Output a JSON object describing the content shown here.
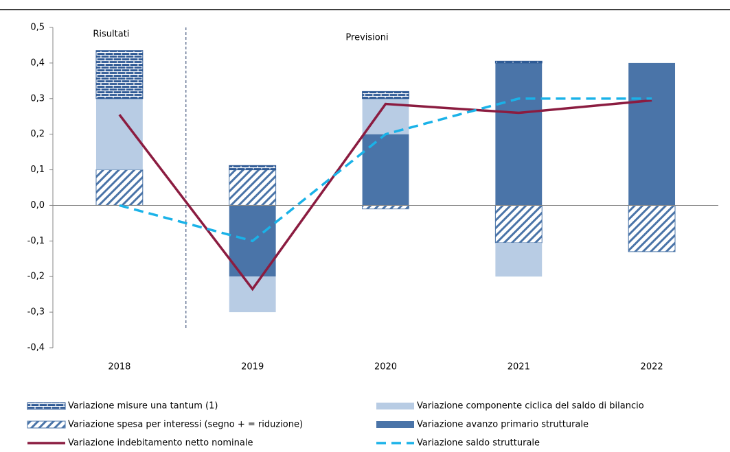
{
  "chart_data": {
    "type": "bar",
    "categories": [
      "2018",
      "2019",
      "2020",
      "2021",
      "2022"
    ],
    "annotations": [
      "Risultati",
      "Previsioni"
    ],
    "ylim": [
      -0.4,
      0.5
    ],
    "yticks": [
      {
        "value": 0.5,
        "label": "0,5"
      },
      {
        "value": 0.4,
        "label": "0,4"
      },
      {
        "value": 0.3,
        "label": "0,3"
      },
      {
        "value": 0.2,
        "label": "0,2"
      },
      {
        "value": 0.1,
        "label": "0,1"
      },
      {
        "value": 0.0,
        "label": "0,0"
      },
      {
        "value": -0.1,
        "label": "-0,1"
      },
      {
        "value": -0.2,
        "label": "-0,2"
      },
      {
        "value": -0.3,
        "label": "-0,3"
      },
      {
        "value": -0.4,
        "label": "-0,4"
      }
    ],
    "series": [
      {
        "name": "Variazione avanzo primario strutturale",
        "kind": "bar",
        "color": "#4a74a8",
        "values": [
          0,
          -0.2,
          0.2,
          0.4,
          0.4
        ]
      },
      {
        "name": "Variazione spesa per interessi (segno + = riduzione)",
        "kind": "bar",
        "pattern": "hatch",
        "color": "#4a74a8",
        "values": [
          0.1,
          0.1,
          -0.01,
          -0.105,
          -0.13
        ]
      },
      {
        "name": "Variazione componente ciclica del saldo di bilancio",
        "kind": "bar",
        "color": "#b8cce4",
        "values": [
          0.2,
          -0.1,
          0.1,
          -0.095,
          0
        ]
      },
      {
        "name": "Variazione misure una tantum (1)",
        "kind": "bar",
        "pattern": "brick",
        "color": "#2f5a95",
        "values": [
          0.135,
          0.012,
          0.02,
          0.005,
          0
        ]
      },
      {
        "name": "Variazione indebitamento netto nominale",
        "kind": "line",
        "color": "#8b1c40",
        "values": [
          0.255,
          -0.235,
          0.285,
          0.26,
          0.295
        ]
      },
      {
        "name": "Variazione saldo strutturale",
        "kind": "line",
        "dash": true,
        "color": "#1ab2e8",
        "values": [
          0.0,
          -0.1,
          0.2,
          0.3,
          0.3
        ]
      }
    ],
    "legend_order": [
      3,
      2,
      1,
      0,
      4,
      5
    ]
  }
}
